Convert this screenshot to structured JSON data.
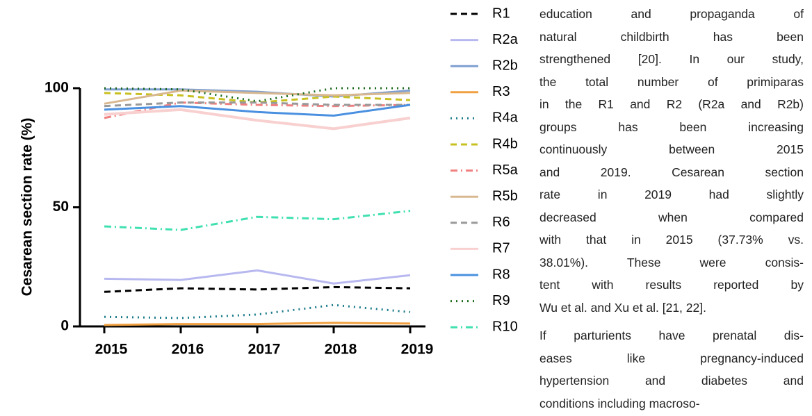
{
  "chart_data": {
    "type": "line",
    "ylabel": "Cesarean section rate (%)",
    "categories": [
      "2015",
      "2016",
      "2017",
      "2018",
      "2019"
    ],
    "ylim": [
      0,
      100
    ],
    "yticks": [
      0,
      50,
      100
    ],
    "series": [
      {
        "name": "R1",
        "color": "#000000",
        "dash": "dashed",
        "values": [
          14.5,
          16,
          15.5,
          16.5,
          16
        ]
      },
      {
        "name": "R2a",
        "color": "#b8b8f0",
        "dash": "solid",
        "values": [
          20,
          19.5,
          23.5,
          18,
          21.5
        ]
      },
      {
        "name": "R2b",
        "color": "#7f9fcf",
        "dash": "solid",
        "values": [
          99.5,
          99.5,
          98.5,
          96.5,
          99
        ]
      },
      {
        "name": "R3",
        "color": "#f0a040",
        "dash": "solid",
        "values": [
          0.6,
          1,
          1,
          1.5,
          1.2
        ]
      },
      {
        "name": "R4a",
        "color": "#1a7a8a",
        "dash": "dotted",
        "values": [
          4,
          3.5,
          5,
          9,
          6
        ]
      },
      {
        "name": "R4b",
        "color": "#c8c020",
        "dash": "dashed",
        "values": [
          98,
          97,
          94,
          96.5,
          95
        ]
      },
      {
        "name": "R5a",
        "color": "#f08080",
        "dash": "dashdot",
        "values": [
          87.5,
          94,
          93,
          92.5,
          93
        ]
      },
      {
        "name": "R5b",
        "color": "#d8b890",
        "dash": "solid",
        "values": [
          93.5,
          99,
          98,
          97,
          98
        ]
      },
      {
        "name": "R6",
        "color": "#999999",
        "dash": "dashed",
        "values": [
          92.5,
          94,
          94,
          93,
          93
        ]
      },
      {
        "name": "R7",
        "color": "#f8d0d0",
        "dash": "solid",
        "values": [
          89,
          91,
          86.5,
          83,
          87.5
        ]
      },
      {
        "name": "R8",
        "color": "#4a90e0",
        "dash": "solid",
        "values": [
          91,
          92.5,
          90,
          88.5,
          93
        ]
      },
      {
        "name": "R9",
        "color": "#1a6a1a",
        "dash": "dotted",
        "values": [
          100,
          99.5,
          94.5,
          100,
          100
        ]
      },
      {
        "name": "R10",
        "color": "#40e0b0",
        "dash": "dashdot",
        "values": [
          42,
          40.5,
          46,
          45,
          48.5
        ]
      }
    ]
  },
  "body": {
    "paragraphs": [
      [
        "education and propaganda of",
        "natural childbirth has been",
        "strengthened [20]. In our study,",
        "the total number of primiparas",
        "in the R1 and R2 (R2a and R2b)",
        "groups has been increasing",
        "continuously between 2015",
        "and 2019. Cesarean section",
        "rate in 2019 had slightly",
        "decreased when compared",
        "with that in 2015 (37.73% vs.",
        "38.01%). These were consis-",
        "tent with results reported by",
        "Wu et al. and Xu et al. [21, 22]."
      ],
      [
        "If parturients have prenatal dis-",
        "eases like pregnancy-induced",
        "hypertension and diabetes and",
        "conditions including macroso-"
      ]
    ]
  }
}
